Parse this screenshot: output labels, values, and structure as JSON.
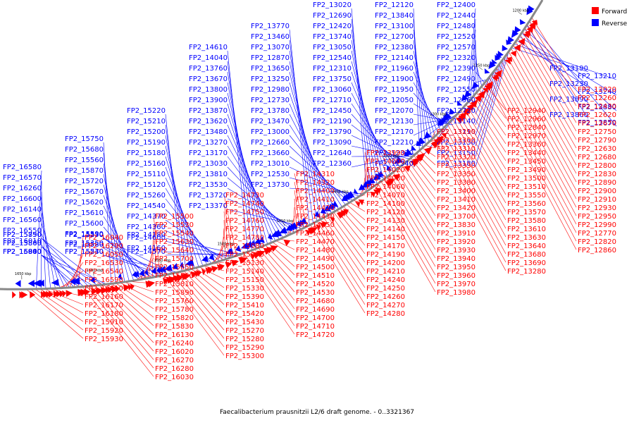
{
  "caption": "Faecalibacterium prausnitzii L2/6 draft genome. - 0..3321367",
  "legend": [
    {
      "label": "Forward",
      "color": "#ff0000"
    },
    {
      "label": "Reverse",
      "color": "#0000ff"
    }
  ],
  "colors": {
    "forward": "#ff0000",
    "reverse": "#0000ff",
    "backbone": "#888888"
  },
  "scale_ticks": [
    "1650 kbp",
    "1600 kbp",
    "1550 kbp",
    "1500 kbp",
    "1450 kbp",
    "1400 kbp",
    "1350 kbp",
    "1300 kbp",
    "1250 kbp",
    "1200 kbp"
  ],
  "reverse_labels": [
    "FP2_16580",
    "FP2_16570",
    "FP2_16260",
    "FP2_16600",
    "FP2_16140",
    "FP2_16560",
    "FP2_16550",
    "FP2_16010",
    "FP2_16000",
    "FP2_15880",
    "FP2_15860",
    "FP2_15850",
    "FP2_15840",
    "FP2_15800",
    "FP2_15790",
    "FP2_15900",
    "FP2_15750",
    "FP2_15680",
    "FP2_15560",
    "FP2_15870",
    "FP2_15720",
    "FP2_15670",
    "FP2_15620",
    "FP2_15610",
    "FP2_15600",
    "FP2_15590",
    "FP2_15580",
    "FP2_15570",
    "FP2_15540",
    "FP2_15350",
    "FP2_15250",
    "FP2_15230",
    "FP2_15220",
    "FP2_15210",
    "FP2_15200",
    "FP2_15190",
    "FP2_15180",
    "FP2_15160",
    "FP2_15110",
    "FP2_15120",
    "FP2_15260",
    "FP2_14540",
    "FP2_14370",
    "FP2_14360",
    "FP2_14600",
    "FP2_14160",
    "FP2_14180",
    "FP2_14570",
    "FP2_14610",
    "FP2_14040",
    "FP2_13760",
    "FP2_13670",
    "FP2_13800",
    "FP2_13900",
    "FP2_13870",
    "FP2_13620",
    "FP2_13480",
    "FP2_13270",
    "FP2_13170",
    "FP2_13030",
    "FP2_13810",
    "FP2_13530",
    "FP2_13720",
    "FP2_13370",
    "FP2_13770",
    "FP2_13460",
    "FP2_13070",
    "FP2_12870",
    "FP2_13650",
    "FP2_13250",
    "FP2_12980",
    "FP2_12730",
    "FP2_13780",
    "FP2_13470",
    "FP2_13000",
    "FP2_12660",
    "FP2_13660",
    "FP2_13010",
    "FP2_12530",
    "FP2_13730",
    "FP2_13020",
    "FP2_12690",
    "FP2_12420",
    "FP2_13740",
    "FP2_13050",
    "FP2_12540",
    "FP2_12310",
    "FP2_13750",
    "FP2_13060",
    "FP2_12710",
    "FP2_12450",
    "FP2_12190",
    "FP2_13790",
    "FP2_13090",
    "FP2_12640",
    "FP2_12360",
    "FP2_12120",
    "FP2_13840",
    "FP2_13100",
    "FP2_12700",
    "FP2_12380",
    "FP2_12140",
    "FP2_11960",
    "FP2_11900",
    "FP2_11950",
    "FP2_12050",
    "FP2_12070",
    "FP2_12130",
    "FP2_12170",
    "FP2_12210",
    "FP2_12330",
    "FP2_12340",
    "FP2_12400",
    "FP2_12440",
    "FP2_12480",
    "FP2_12520",
    "FP2_12570",
    "FP2_12320",
    "FP2_12390",
    "FP2_12490",
    "FP2_12550",
    "FP2_12560",
    "FP2_12720",
    "FP2_13140",
    "FP2_13110",
    "FP2_13130",
    "FP2_13150",
    "FP2_13180",
    "FP2_13190",
    "FP2_13210",
    "FP2_13230",
    "FP2_13240",
    "FP2_13890",
    "FP2_13880",
    "FP2_13860",
    "FP2_13850"
  ],
  "forward_labels": [
    "FP2_12020",
    "FP2_12260",
    "FP2_12430",
    "FP2_12620",
    "FP2_12670",
    "FP2_12750",
    "FP2_12790",
    "FP2_12630",
    "FP2_12680",
    "FP2_12800",
    "FP2_12830",
    "FP2_12890",
    "FP2_12900",
    "FP2_12910",
    "FP2_12930",
    "FP2_12950",
    "FP2_12990",
    "FP2_12770",
    "FP2_12820",
    "FP2_12860",
    "FP2_12940",
    "FP2_12960",
    "FP2_12840",
    "FP2_12970",
    "FP2_13360",
    "FP2_13440",
    "FP2_13450",
    "FP2_13490",
    "FP2_13500",
    "FP2_13510",
    "FP2_13550",
    "FP2_13560",
    "FP2_13570",
    "FP2_13580",
    "FP2_13610",
    "FP2_13630",
    "FP2_13640",
    "FP2_13680",
    "FP2_13690",
    "FP2_13280",
    "FP2_13290",
    "FP2_13300",
    "FP2_13310",
    "FP2_13320",
    "FP2_13330",
    "FP2_13350",
    "FP2_13380",
    "FP2_13400",
    "FP2_13410",
    "FP2_13420",
    "FP2_13700",
    "FP2_13830",
    "FP2_13910",
    "FP2_13920",
    "FP2_13930",
    "FP2_13940",
    "FP2_13950",
    "FP2_13960",
    "FP2_13970",
    "FP2_13980",
    "FP2_13990",
    "FP2_14000",
    "FP2_14020",
    "FP2_14030",
    "FP2_14060",
    "FP2_14070",
    "FP2_14100",
    "FP2_14120",
    "FP2_14130",
    "FP2_14140",
    "FP2_14150",
    "FP2_14170",
    "FP2_14190",
    "FP2_14200",
    "FP2_14210",
    "FP2_14240",
    "FP2_14250",
    "FP2_14260",
    "FP2_14270",
    "FP2_14280",
    "FP2_14310",
    "FP2_14320",
    "FP2_14400",
    "FP2_14410",
    "FP2_14420",
    "FP2_14430",
    "FP2_14450",
    "FP2_14460",
    "FP2_14470",
    "FP2_14480",
    "FP2_14490",
    "FP2_14500",
    "FP2_14510",
    "FP2_14520",
    "FP2_14530",
    "FP2_14680",
    "FP2_14690",
    "FP2_14700",
    "FP2_14710",
    "FP2_14720",
    "FP2_14730",
    "FP2_14740",
    "FP2_14750",
    "FP2_14760",
    "FP2_14770",
    "FP2_14780",
    "FP2_15080",
    "FP2_15090",
    "FP2_15130",
    "FP2_15140",
    "FP2_15150",
    "FP2_15330",
    "FP2_15390",
    "FP2_15410",
    "FP2_15420",
    "FP2_15430",
    "FP2_15270",
    "FP2_15280",
    "FP2_15290",
    "FP2_15300",
    "FP2_15500",
    "FP2_15530",
    "FP2_15540",
    "FP2_15630",
    "FP2_15640",
    "FP2_15700",
    "FP2_15650",
    "FP2_15660",
    "FP2_15810",
    "FP2_15890",
    "FP2_15760",
    "FP2_15780",
    "FP2_15820",
    "FP2_15830",
    "FP2_16130",
    "FP2_16240",
    "FP2_16020",
    "FP2_16270",
    "FP2_16280",
    "FP2_16030",
    "FP2_16040",
    "FP2_16290",
    "FP2_16050",
    "FP2_16530",
    "FP2_16540",
    "FP2_16590",
    "FP2_16610",
    "FP2_16160",
    "FP2_16170",
    "FP2_16180",
    "FP2_15910",
    "FP2_15920",
    "FP2_15930"
  ]
}
